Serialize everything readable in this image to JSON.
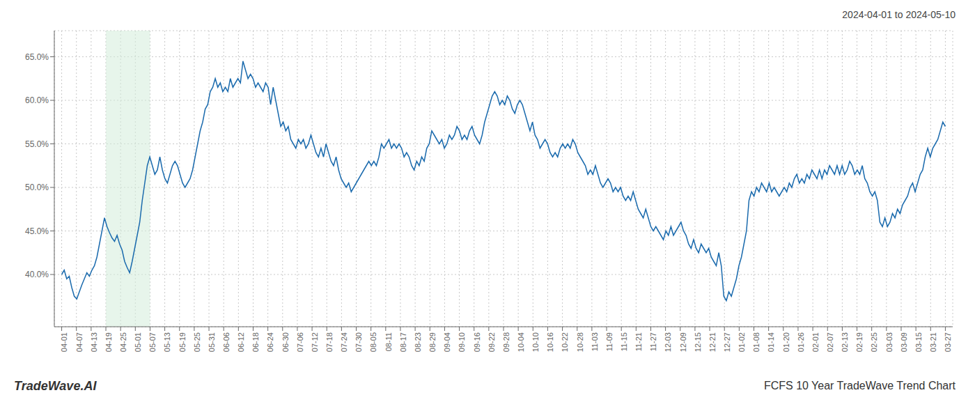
{
  "chart_data": {
    "type": "line",
    "title": "FCFS 10 Year TradeWave Trend Chart",
    "subtitle": "2024-04-01 to 2024-05-10",
    "annotations": [
      "TradeWave.AI"
    ],
    "color": "#1a6aad",
    "grid": true,
    "spans": [
      {
        "start": 17.55,
        "end": 35.1,
        "color": "#d4edda"
      }
    ],
    "xlim": [
      -2.925,
      353.925
    ],
    "xticks": [
      {
        "value": 0,
        "label": "04-01"
      },
      {
        "value": 5.85,
        "label": "04-07"
      },
      {
        "value": 11.7,
        "label": "04-13"
      },
      {
        "value": 17.55,
        "label": "04-19"
      },
      {
        "value": 23.4,
        "label": "04-25"
      },
      {
        "value": 29.25,
        "label": "05-01"
      },
      {
        "value": 35.1,
        "label": "05-07"
      },
      {
        "value": 40.95,
        "label": "05-13"
      },
      {
        "value": 46.8,
        "label": "05-19"
      },
      {
        "value": 52.65,
        "label": "05-25"
      },
      {
        "value": 58.5,
        "label": "05-31"
      },
      {
        "value": 64.35,
        "label": "06-06"
      },
      {
        "value": 70.2,
        "label": "06-12"
      },
      {
        "value": 76.05,
        "label": "06-18"
      },
      {
        "value": 81.9,
        "label": "06-24"
      },
      {
        "value": 87.75,
        "label": "06-30"
      },
      {
        "value": 93.6,
        "label": "07-06"
      },
      {
        "value": 99.45,
        "label": "07-12"
      },
      {
        "value": 105.3,
        "label": "07-18"
      },
      {
        "value": 111.15,
        "label": "07-24"
      },
      {
        "value": 117,
        "label": "07-30"
      },
      {
        "value": 122.85,
        "label": "08-05"
      },
      {
        "value": 128.7,
        "label": "08-11"
      },
      {
        "value": 134.55,
        "label": "08-17"
      },
      {
        "value": 140.4,
        "label": "08-23"
      },
      {
        "value": 146.25,
        "label": "08-29"
      },
      {
        "value": 152.1,
        "label": "09-04"
      },
      {
        "value": 157.95,
        "label": "09-10"
      },
      {
        "value": 163.8,
        "label": "09-16"
      },
      {
        "value": 169.65,
        "label": "09-22"
      },
      {
        "value": 175.5,
        "label": "09-28"
      },
      {
        "value": 181.35,
        "label": "10-04"
      },
      {
        "value": 187.2,
        "label": "10-10"
      },
      {
        "value": 193.05,
        "label": "10-16"
      },
      {
        "value": 198.9,
        "label": "10-22"
      },
      {
        "value": 204.75,
        "label": "10-28"
      },
      {
        "value": 210.6,
        "label": "11-03"
      },
      {
        "value": 216.45,
        "label": "11-09"
      },
      {
        "value": 222.3,
        "label": "11-15"
      },
      {
        "value": 228.15,
        "label": "11-21"
      },
      {
        "value": 234,
        "label": "11-27"
      },
      {
        "value": 239.85,
        "label": "12-03"
      },
      {
        "value": 245.7,
        "label": "12-09"
      },
      {
        "value": 251.55,
        "label": "12-15"
      },
      {
        "value": 257.4,
        "label": "12-21"
      },
      {
        "value": 263.25,
        "label": "12-27"
      },
      {
        "value": 269.1,
        "label": "01-02"
      },
      {
        "value": 274.95,
        "label": "01-08"
      },
      {
        "value": 280.8,
        "label": "01-14"
      },
      {
        "value": 286.65,
        "label": "01-20"
      },
      {
        "value": 292.5,
        "label": "01-26"
      },
      {
        "value": 298.35,
        "label": "02-01"
      },
      {
        "value": 304.2,
        "label": "02-07"
      },
      {
        "value": 310.05,
        "label": "02-13"
      },
      {
        "value": 315.9,
        "label": "02-19"
      },
      {
        "value": 321.75,
        "label": "02-25"
      },
      {
        "value": 327.6,
        "label": "03-03"
      },
      {
        "value": 333.45,
        "label": "03-09"
      },
      {
        "value": 339.3,
        "label": "03-15"
      },
      {
        "value": 345.15,
        "label": "03-21"
      },
      {
        "value": 351,
        "label": "03-27"
      }
    ],
    "ylim": [
      34,
      68
    ],
    "yticks": [
      {
        "value": 40,
        "label": "40.0%"
      },
      {
        "value": 45,
        "label": "45.0%"
      },
      {
        "value": 50,
        "label": "50.0%"
      },
      {
        "value": 55,
        "label": "55.0%"
      },
      {
        "value": 60,
        "label": "60.0%"
      },
      {
        "value": 65,
        "label": "65.0%"
      }
    ],
    "x": [
      0,
      1,
      2,
      3,
      4,
      5,
      6,
      7,
      8,
      9,
      10,
      11,
      12,
      13,
      14,
      15,
      16,
      17,
      18,
      19,
      20,
      21,
      22,
      23,
      24,
      25,
      26,
      27,
      28,
      29,
      30,
      31,
      32,
      33,
      34,
      35,
      36,
      37,
      38,
      39,
      40,
      41,
      42,
      43,
      44,
      45,
      46,
      47,
      48,
      49,
      50,
      51,
      52,
      53,
      54,
      55,
      56,
      57,
      58,
      59,
      60,
      61,
      62,
      63,
      64,
      65,
      66,
      67,
      68,
      69,
      70,
      71,
      72,
      73,
      74,
      75,
      76,
      77,
      78,
      79,
      80,
      81,
      82,
      83,
      84,
      85,
      86,
      87,
      88,
      89,
      90,
      91,
      92,
      93,
      94,
      95,
      96,
      97,
      98,
      99,
      100,
      101,
      102,
      103,
      104,
      105,
      106,
      107,
      108,
      109,
      110,
      111,
      112,
      113,
      114,
      115,
      116,
      117,
      118,
      119,
      120,
      121,
      122,
      123,
      124,
      125,
      126,
      127,
      128,
      129,
      130,
      131,
      132,
      133,
      134,
      135,
      136,
      137,
      138,
      139,
      140,
      141,
      142,
      143,
      144,
      145,
      146,
      147,
      148,
      149,
      150,
      151,
      152,
      153,
      154,
      155,
      156,
      157,
      158,
      159,
      160,
      161,
      162,
      163,
      164,
      165,
      166,
      167,
      168,
      169,
      170,
      171,
      172,
      173,
      174,
      175,
      176,
      177,
      178,
      179,
      180,
      181,
      182,
      183,
      184,
      185,
      186,
      187,
      188,
      189,
      190,
      191,
      192,
      193,
      194,
      195,
      196,
      197,
      198,
      199,
      200,
      201,
      202,
      203,
      204,
      205,
      206,
      207,
      208,
      209,
      210,
      211,
      212,
      213,
      214,
      215,
      216,
      217,
      218,
      219,
      220,
      221,
      222,
      223,
      224,
      225,
      226,
      227,
      228,
      229,
      230,
      231,
      232,
      233,
      234,
      235,
      236,
      237,
      238,
      239,
      240,
      241,
      242,
      243,
      244,
      245,
      246,
      247,
      248,
      249,
      250,
      251,
      252,
      253,
      254,
      255,
      256,
      257,
      258,
      259,
      260,
      261,
      262,
      263,
      264,
      265,
      266,
      267,
      268,
      269,
      270,
      271,
      272,
      273,
      274,
      275,
      276,
      277,
      278,
      279,
      280,
      281,
      282,
      283,
      284,
      285,
      286,
      287,
      288,
      289,
      290,
      291,
      292,
      293,
      294,
      295,
      296,
      297,
      298,
      299,
      300,
      301,
      302,
      303,
      304,
      305,
      306,
      307,
      308,
      309,
      310,
      311,
      312,
      313,
      314,
      315,
      316,
      317,
      318,
      319,
      320,
      321,
      322,
      323,
      324,
      325,
      326,
      327,
      328,
      329,
      330,
      331,
      332,
      333,
      334,
      335,
      336,
      337,
      338,
      339,
      340,
      341,
      342,
      343,
      344,
      345,
      346,
      347,
      348,
      349,
      350,
      351
    ],
    "values": [
      40.0,
      40.5,
      39.5,
      39.8,
      38.5,
      37.5,
      37.2,
      38.0,
      38.8,
      39.5,
      40.2,
      39.8,
      40.5,
      41.0,
      42.0,
      43.5,
      45.0,
      46.5,
      45.5,
      44.8,
      44.2,
      43.8,
      44.5,
      43.5,
      42.8,
      41.5,
      40.8,
      40.2,
      41.5,
      43.0,
      44.5,
      46.0,
      48.5,
      50.5,
      52.5,
      53.5,
      52.5,
      51.5,
      52.0,
      53.5,
      52.0,
      51.0,
      50.5,
      51.5,
      52.5,
      53.0,
      52.5,
      51.5,
      50.5,
      50.0,
      50.5,
      51.0,
      52.0,
      53.5,
      55.0,
      56.5,
      57.5,
      59.0,
      59.5,
      61.0,
      61.5,
      62.5,
      61.5,
      62.0,
      61.0,
      61.5,
      61.0,
      62.5,
      61.5,
      62.0,
      62.5,
      62.0,
      64.5,
      63.5,
      62.5,
      63.0,
      62.5,
      61.5,
      62.0,
      61.5,
      61.0,
      62.0,
      61.5,
      59.5,
      61.5,
      60.0,
      58.5,
      57.0,
      57.5,
      56.5,
      57.0,
      55.5,
      55.0,
      54.5,
      55.5,
      55.0,
      55.5,
      54.5,
      55.0,
      56.0,
      55.0,
      54.0,
      53.5,
      54.5,
      53.5,
      55.0,
      54.0,
      53.0,
      52.5,
      53.5,
      52.0,
      51.0,
      50.5,
      50.0,
      50.5,
      49.5,
      50.0,
      50.5,
      51.0,
      51.5,
      52.0,
      52.5,
      53.0,
      52.5,
      53.0,
      52.5,
      53.5,
      55.0,
      54.5,
      55.0,
      55.5,
      54.5,
      55.0,
      54.5,
      55.0,
      54.5,
      53.5,
      54.0,
      53.5,
      52.5,
      52.0,
      53.0,
      52.5,
      53.5,
      53.0,
      54.5,
      55.0,
      56.5,
      56.0,
      55.5,
      55.0,
      55.5,
      54.5,
      55.0,
      56.0,
      55.5,
      56.0,
      57.0,
      56.5,
      55.5,
      56.0,
      55.5,
      56.5,
      57.0,
      56.0,
      55.5,
      55.0,
      56.0,
      57.5,
      58.5,
      59.5,
      60.5,
      61.0,
      60.5,
      59.5,
      60.0,
      59.5,
      60.5,
      60.0,
      59.0,
      58.5,
      59.5,
      60.0,
      59.5,
      58.5,
      57.5,
      56.5,
      57.5,
      56.0,
      55.5,
      54.5,
      55.0,
      55.5,
      55.0,
      54.0,
      53.5,
      54.0,
      53.5,
      54.5,
      55.0,
      54.5,
      55.0,
      54.5,
      55.5,
      55.0,
      54.0,
      53.5,
      53.0,
      52.5,
      51.5,
      52.0,
      51.5,
      52.5,
      51.5,
      50.5,
      50.0,
      50.5,
      51.0,
      50.5,
      49.5,
      50.0,
      49.5,
      50.0,
      49.0,
      48.5,
      49.0,
      48.5,
      49.5,
      48.5,
      47.5,
      47.0,
      46.5,
      47.5,
      46.5,
      45.5,
      45.0,
      45.5,
      45.0,
      44.5,
      44.0,
      45.0,
      44.5,
      45.5,
      44.5,
      45.0,
      45.5,
      46.0,
      45.0,
      44.5,
      43.5,
      43.0,
      44.0,
      43.0,
      42.5,
      43.5,
      43.0,
      42.5,
      43.0,
      42.0,
      41.5,
      41.0,
      42.5,
      41.0,
      37.5,
      37.0,
      38.0,
      37.5,
      38.5,
      39.5,
      41.0,
      42.0,
      43.5,
      45.0,
      48.5,
      49.5,
      49.0,
      50.0,
      49.5,
      50.5,
      50.0,
      49.5,
      50.5,
      49.5,
      50.0,
      49.5,
      49.0,
      49.5,
      50.0,
      49.5,
      50.5,
      50.0,
      51.0,
      51.5,
      50.5,
      51.0,
      50.5,
      51.5,
      51.0,
      52.0,
      51.5,
      51.0,
      52.0,
      51.0,
      52.0,
      51.5,
      52.5,
      52.0,
      51.5,
      52.5,
      51.5,
      52.5,
      51.5,
      52.0,
      53.0,
      52.5,
      51.5,
      52.0,
      51.5,
      52.5,
      51.0,
      50.5,
      49.5,
      49.0,
      49.5,
      48.5,
      46.0,
      45.5,
      46.5,
      45.5,
      46.0,
      47.0,
      46.5,
      47.5,
      47.0,
      48.0,
      48.5,
      49.0,
      50.0,
      50.5,
      49.5,
      50.5,
      51.5,
      52.0,
      53.5,
      54.5,
      53.5,
      54.5,
      55.0,
      55.5,
      56.5,
      57.5,
      57.0
    ]
  }
}
